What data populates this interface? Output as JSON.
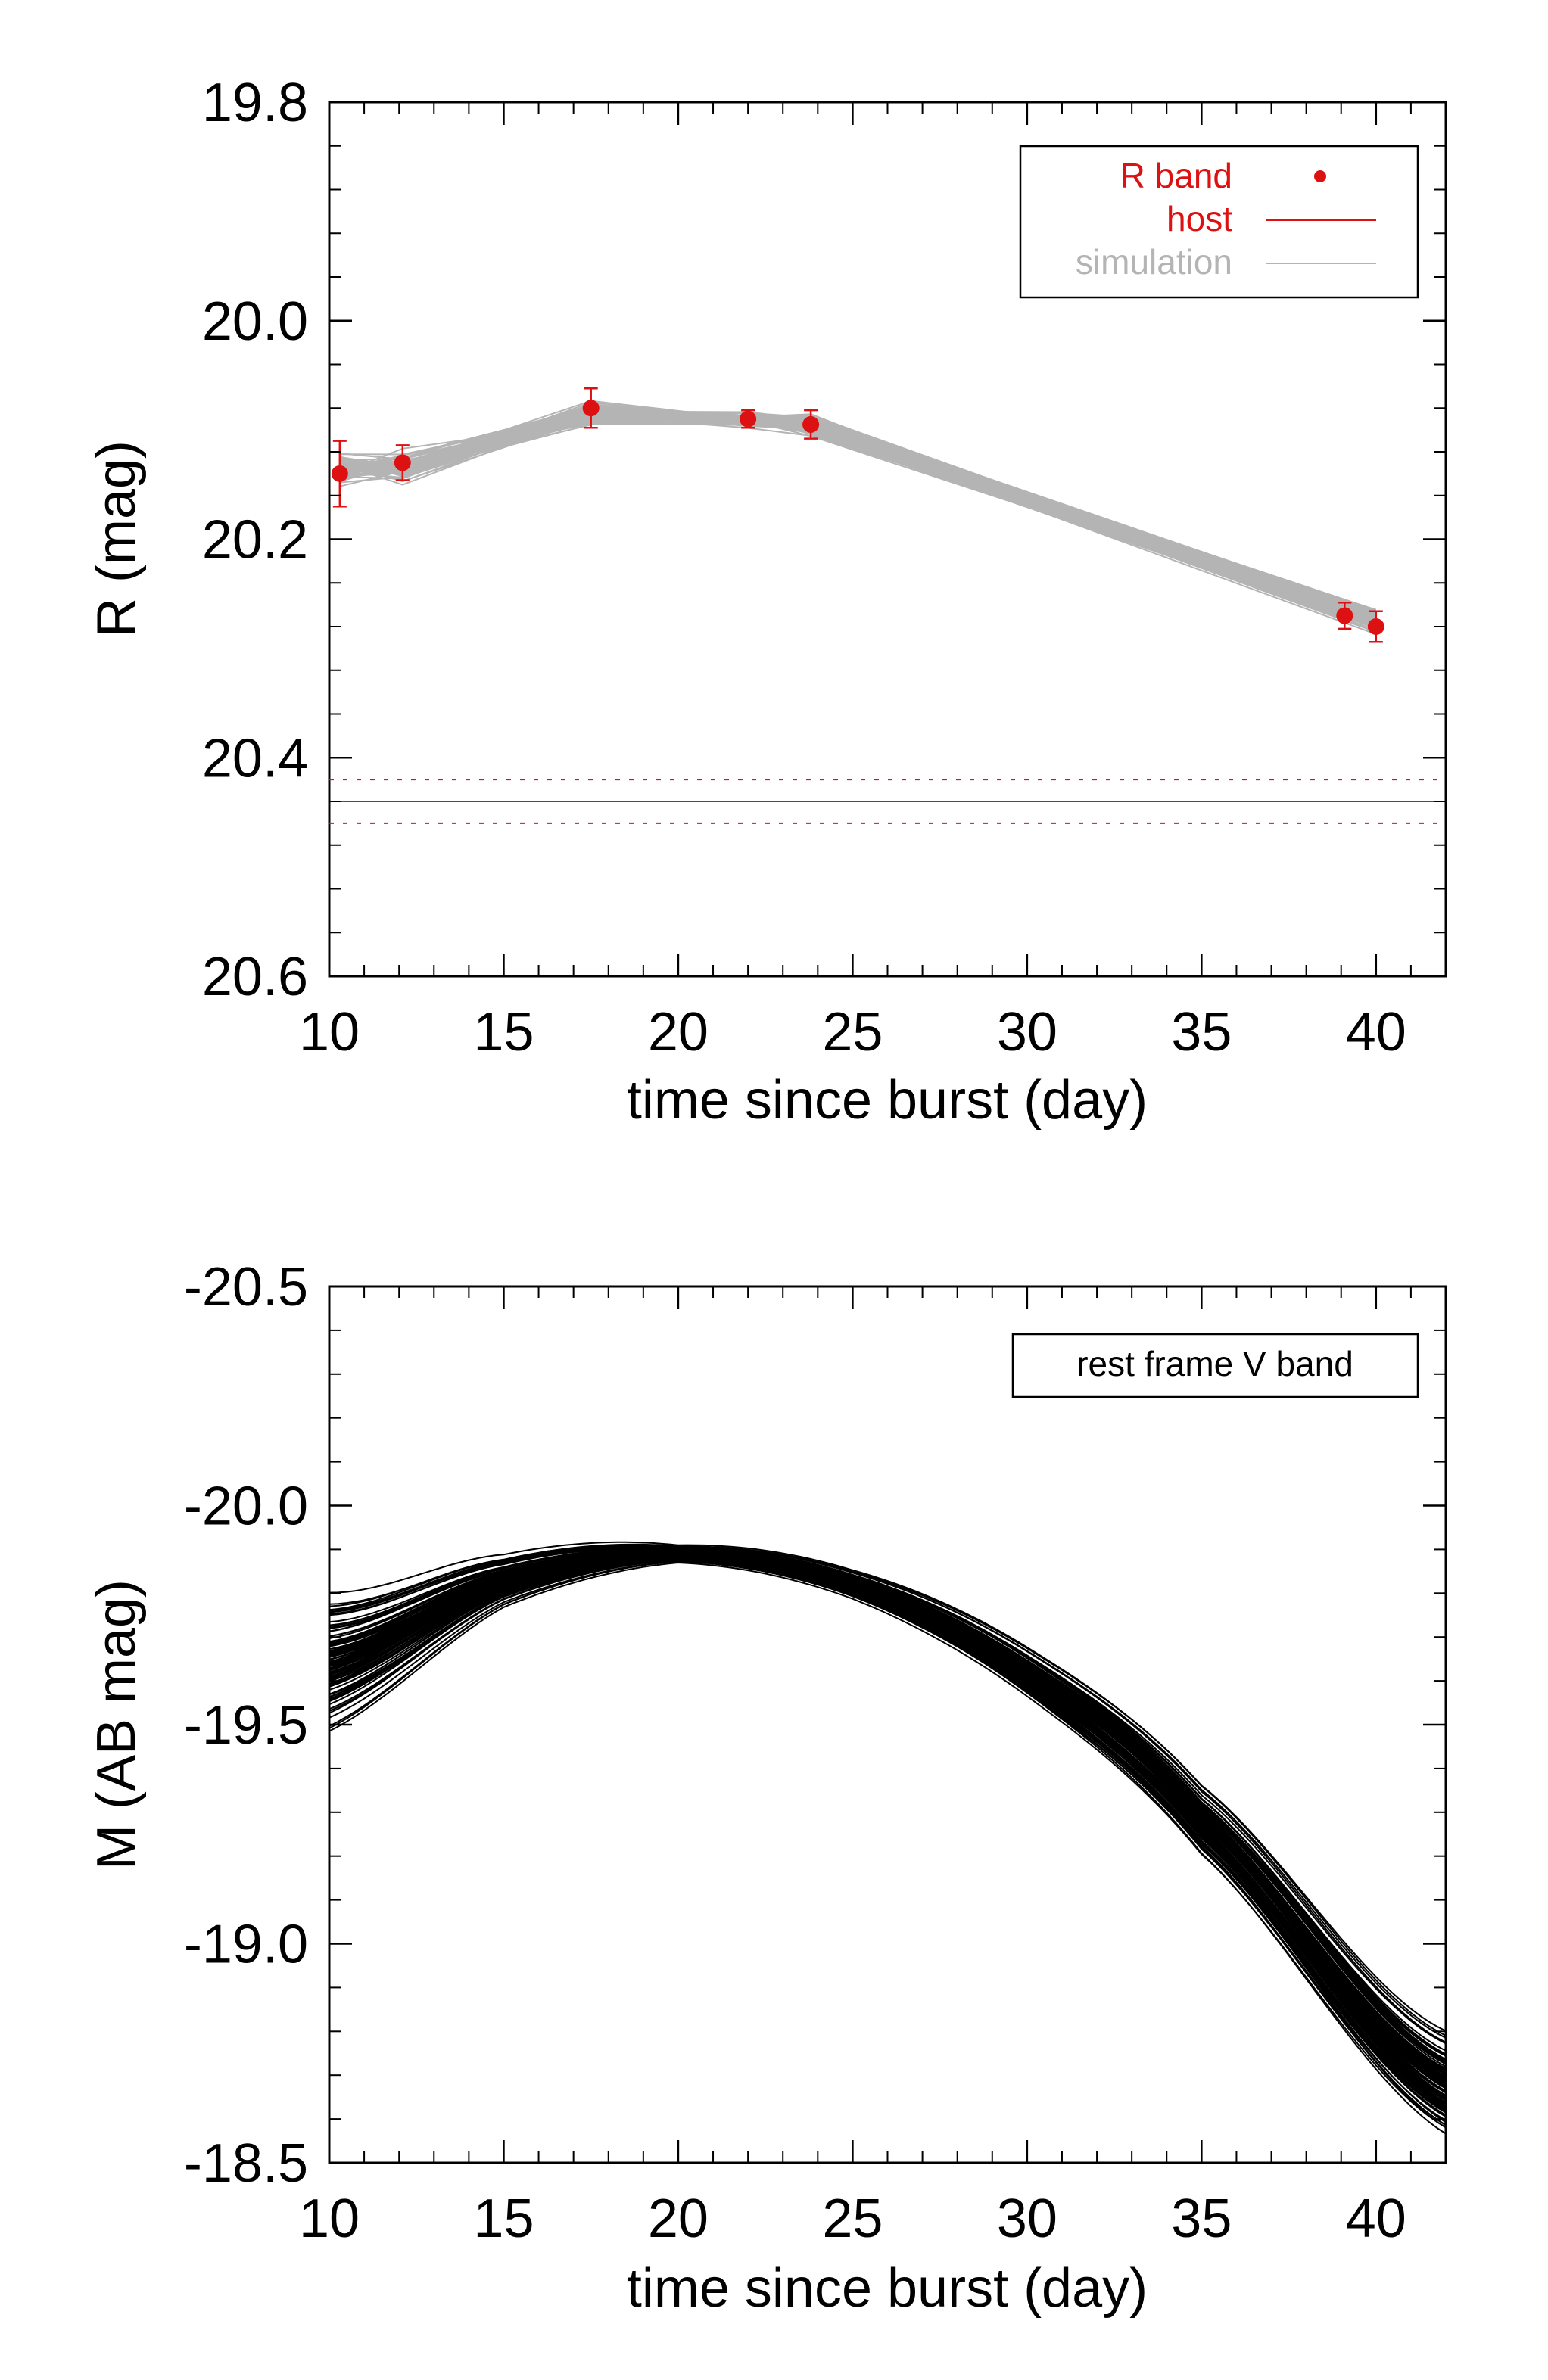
{
  "chart_data": [
    {
      "type": "line",
      "xlabel": "time since burst (day)",
      "ylabel": "R (mag)",
      "xlim": [
        10,
        42
      ],
      "ylim": [
        19.8,
        20.6
      ],
      "y_inverted": true,
      "grid": false,
      "x_ticks": [
        10,
        15,
        20,
        25,
        30,
        35,
        40
      ],
      "x_tick_labels": [
        "10",
        "15",
        "20",
        "25",
        "30",
        "35",
        "40"
      ],
      "y_ticks": [
        19.8,
        20.0,
        20.2,
        20.4,
        20.6
      ],
      "y_tick_labels": [
        "19.8",
        "20.0",
        "20.2",
        "20.4",
        "20.6"
      ],
      "legend": {
        "placement": "top-right",
        "entries": [
          {
            "label": "R band",
            "color": "#dd1111",
            "style": "point"
          },
          {
            "label": "host",
            "color": "#dd1111",
            "style": "line"
          },
          {
            "label": "simulation",
            "color": "#b4b4b4",
            "style": "line"
          }
        ]
      },
      "series": [
        {
          "name": "R band",
          "color": "#dd1111",
          "x": [
            10.3,
            12.1,
            17.5,
            22.0,
            23.8,
            39.1,
            40.0
          ],
          "y": [
            20.14,
            20.13,
            20.08,
            20.09,
            20.095,
            20.27,
            20.28
          ],
          "yerr": [
            0.03,
            0.016,
            0.018,
            0.008,
            0.013,
            0.012,
            0.014
          ]
        },
        {
          "name": "host",
          "color": "#dd1111",
          "y": 20.44,
          "y_err_band": [
            20.42,
            20.46
          ]
        },
        {
          "name": "simulation",
          "color": "#b4b4b4",
          "x": [
            10.3,
            12.1,
            17.5,
            22.0,
            23.8,
            40.0
          ],
          "y": [
            20.135,
            20.135,
            20.085,
            20.09,
            20.095,
            20.275
          ],
          "spread": [
            0.012,
            0.012,
            0.01,
            0.006,
            0.008,
            0.01
          ]
        }
      ]
    },
    {
      "type": "line",
      "xlabel": "time since burst (day)",
      "ylabel": "M (AB mag)",
      "xlim": [
        10,
        42
      ],
      "ylim": [
        -20.5,
        -18.5
      ],
      "y_inverted": false,
      "grid": false,
      "x_ticks": [
        10,
        15,
        20,
        25,
        30,
        35,
        40
      ],
      "x_tick_labels": [
        "10",
        "15",
        "20",
        "25",
        "30",
        "35",
        "40"
      ],
      "y_ticks": [
        -20.5,
        -20.0,
        -19.5,
        -19.0,
        -18.5
      ],
      "y_tick_labels": [
        "-20.5",
        "-20.0",
        "-19.5",
        "-19.0",
        "-18.5"
      ],
      "legend": {
        "placement": "top-right",
        "entries": [
          {
            "label": "rest frame V band",
            "style": "text"
          }
        ]
      },
      "series": [
        {
          "color": "#000000",
          "x": [
            10,
            15,
            20,
            25,
            30,
            35,
            42
          ],
          "y": [
            -19.65,
            -19.83,
            -19.89,
            -19.82,
            -19.62,
            -19.28,
            -18.68
          ],
          "spread_y": [
            0.09,
            0.035,
            0.012,
            0.02,
            0.035,
            0.05,
            0.07
          ]
        }
      ]
    }
  ]
}
